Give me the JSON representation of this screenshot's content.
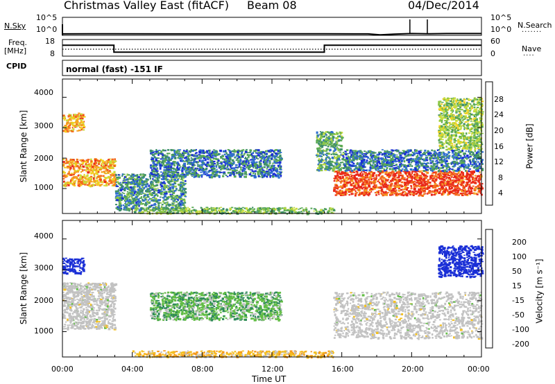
{
  "header": {
    "station": "Christmas Valley East (fitACF)",
    "beam": "Beam 08",
    "date": "04/Dec/2014"
  },
  "noise_panel": {
    "left_label": "N.Sky",
    "right_label": "N.Search",
    "left_ticks": [
      "10^5",
      "10^0"
    ],
    "right_ticks": [
      "10^5",
      "10^0"
    ]
  },
  "freq_panel": {
    "left_label_1": "Freq.",
    "left_label_2": "[MHz]",
    "right_label": "Nave",
    "left_ticks": [
      "18",
      "8"
    ],
    "right_ticks": [
      "60",
      "0"
    ]
  },
  "cpid": {
    "label": "CPID",
    "mode": "normal (fast) -151 IF"
  },
  "power_panel": {
    "ylabel": "Slant Range [km]",
    "yticks": [
      "4000",
      "3000",
      "2000",
      "1000"
    ],
    "colorbar_label": "Power [dB]",
    "colorbar_ticks": [
      "28",
      "24",
      "20",
      "16",
      "12",
      "8",
      "4"
    ]
  },
  "velocity_panel": {
    "ylabel": "Slant Range [km]",
    "yticks": [
      "4000",
      "3000",
      "2000",
      "1000"
    ],
    "colorbar_label": "Velocity [m s⁻¹]",
    "colorbar_ticks": [
      "200",
      "100",
      "50",
      "15",
      "-15",
      "-50",
      "-100",
      "-200"
    ]
  },
  "xaxis": {
    "label": "Time UT",
    "ticks": [
      "00:00",
      "04:00",
      "08:00",
      "12:00",
      "16:00",
      "20:00",
      "00:00"
    ]
  },
  "colors": {
    "power_scale": [
      "#1a2fd6",
      "#2f6fd0",
      "#3f8f6a",
      "#5aaa55",
      "#8fc84a",
      "#c8dd3c",
      "#f3d020",
      "#f6a020",
      "#f36a1c",
      "#e92a1a"
    ],
    "velocity_scale": [
      "#1a2fd6",
      "#3b63d6",
      "#2f8a5a",
      "#62bd45",
      "#c2c2c2",
      "#f4c020",
      "#f59a1a",
      "#f0561a",
      "#e6221a"
    ],
    "ground_scatter": "#c2c2c2"
  },
  "chart_data": [
    {
      "type": "line",
      "title": "Noise (N.Sky / N.Search)",
      "x_hours": [
        0,
        3,
        6,
        9,
        12,
        15,
        17.5,
        18.2,
        19,
        20,
        21,
        22,
        24
      ],
      "n_sky_log10": [
        0.4,
        0.45,
        0.4,
        0.4,
        0.45,
        0.45,
        0.4,
        0.15,
        0.35,
        0.5,
        0.45,
        0.5,
        0.5
      ],
      "spikes_hours": [
        19.9,
        20.9
      ],
      "ylim_log10": [
        0,
        5
      ]
    },
    {
      "type": "line",
      "title": "Frequency / Nave",
      "x_hours": [
        0,
        2.95,
        2.95,
        15.0,
        15.0,
        24
      ],
      "freq_mhz": [
        14.6,
        14.6,
        10.4,
        10.4,
        14.6,
        14.6
      ],
      "nave_approx": 25,
      "ylim_freq": [
        8,
        18
      ],
      "ylim_nave": [
        0,
        60
      ]
    },
    {
      "type": "heatmap",
      "title": "Power",
      "xlabel": "Time UT",
      "ylabel": "Slant Range [km]",
      "xlim_hours": [
        0,
        24
      ],
      "ylim_km": [
        180,
        4600
      ],
      "clim_db": [
        0,
        30
      ],
      "features": [
        {
          "name": "dense echo band, morning",
          "t_start": 0.0,
          "t_end": 3.0,
          "r_low": 1100,
          "r_high": 2000,
          "power_db": 22
        },
        {
          "name": "far-range patch",
          "t_start": 0.0,
          "t_end": 1.2,
          "r_low": 2900,
          "r_high": 3500,
          "power_db": 22
        },
        {
          "name": "lower patches",
          "t_start": 3.0,
          "t_end": 7.0,
          "r_low": 300,
          "r_high": 1500,
          "power_db": 8
        },
        {
          "name": "mid-range band",
          "t_start": 5.0,
          "t_end": 12.5,
          "r_low": 1400,
          "r_high": 2300,
          "power_db": 6
        },
        {
          "name": "near-range band",
          "t_start": 4.0,
          "t_end": 15.5,
          "r_low": 200,
          "r_high": 400,
          "power_db": 12
        },
        {
          "name": "afternoon echoes",
          "t_start": 14.5,
          "t_end": 16.0,
          "r_low": 1600,
          "r_high": 2900,
          "power_db": 10
        },
        {
          "name": "strong evening band",
          "t_start": 15.5,
          "t_end": 24.0,
          "r_low": 800,
          "r_high": 1600,
          "power_db": 28
        },
        {
          "name": "evening upper band",
          "t_start": 16.0,
          "t_end": 24.0,
          "r_low": 1600,
          "r_high": 2300,
          "power_db": 6
        },
        {
          "name": "late far-range echoes",
          "t_start": 21.5,
          "t_end": 24.0,
          "r_low": 2300,
          "r_high": 4000,
          "power_db": 14
        }
      ]
    },
    {
      "type": "heatmap",
      "title": "Velocity",
      "xlabel": "Time UT",
      "ylabel": "Slant Range [km]",
      "xlim_hours": [
        0,
        24
      ],
      "ylim_km": [
        180,
        4600
      ],
      "clim_ms": [
        -200,
        200
      ],
      "features": [
        {
          "name": "ground scatter band",
          "t_start": 0.0,
          "t_end": 3.0,
          "r_low": 1100,
          "r_high": 2600,
          "velocity": 0,
          "ground": true
        },
        {
          "name": "positive far-range",
          "t_start": 0.0,
          "t_end": 1.2,
          "r_low": 2900,
          "r_high": 3400,
          "velocity": 200
        },
        {
          "name": "mixed mid range",
          "t_start": 5.0,
          "t_end": 12.5,
          "r_low": 1400,
          "r_high": 2300,
          "velocity": 50
        },
        {
          "name": "near-range flow",
          "t_start": 4.0,
          "t_end": 15.5,
          "r_low": 200,
          "r_high": 400,
          "velocity": -50
        },
        {
          "name": "evening ground scatter",
          "t_start": 15.5,
          "t_end": 24.0,
          "r_low": 800,
          "r_high": 2300,
          "velocity": 0,
          "ground": true
        },
        {
          "name": "late positive far-range",
          "t_start": 21.5,
          "t_end": 24.0,
          "r_low": 2800,
          "r_high": 3800,
          "velocity": 200
        }
      ]
    }
  ]
}
